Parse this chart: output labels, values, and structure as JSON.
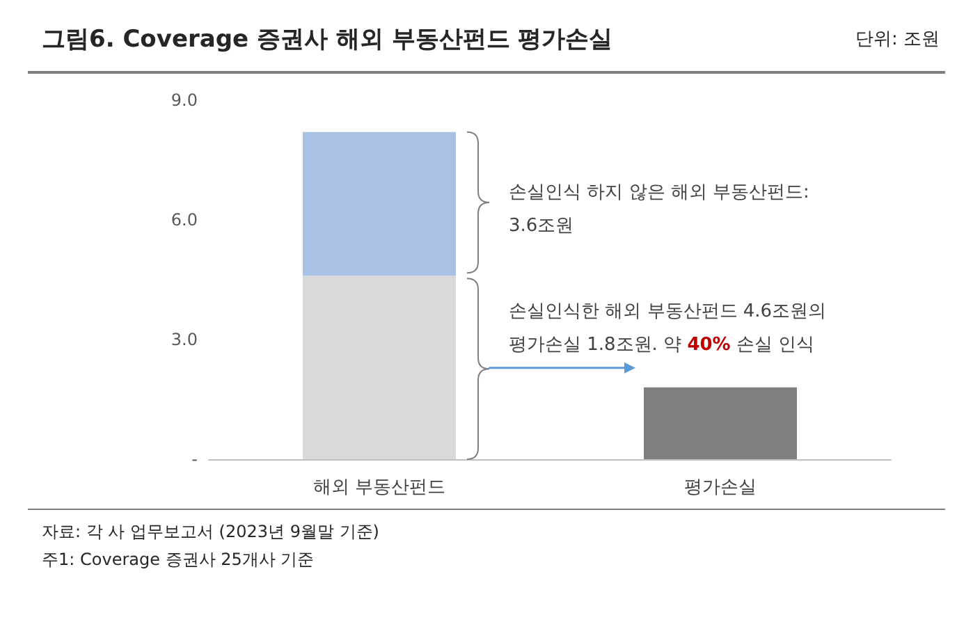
{
  "chart_data": {
    "type": "bar",
    "title": "그림6. Coverage 증권사 해외 부동산펀드 평가손실",
    "subtitle": "단위: 조원",
    "categories": [
      "해외 부동산펀드",
      "평가손실"
    ],
    "stacked": true,
    "series": [
      {
        "values": [
          4.6,
          1.8
        ],
        "colors": [
          "#d9d9d9",
          "#7f7f7f"
        ]
      },
      {
        "values": [
          3.6,
          null
        ],
        "color": "#a9c2e3"
      }
    ],
    "ylim": [
      0,
      9
    ],
    "yticks": [
      {
        "value": 0,
        "label": "-"
      },
      {
        "value": 3,
        "label": "3.0"
      },
      {
        "value": 6,
        "label": "6.0"
      },
      {
        "value": 9,
        "label": "9.0"
      }
    ],
    "grid": false,
    "annotations": [
      "손실인식 하지 않은 해외 부동산펀드:\n3.6조원",
      "손실인식한 해외 부동산펀드 4.6조원의\n평가손실 1.8조원. 약 40% 손실 인식",
      "자료: 각 사 업무보고서 (2023년 9월말 기준)",
      "주1: Coverage 증권사 25개사 기준"
    ]
  }
}
